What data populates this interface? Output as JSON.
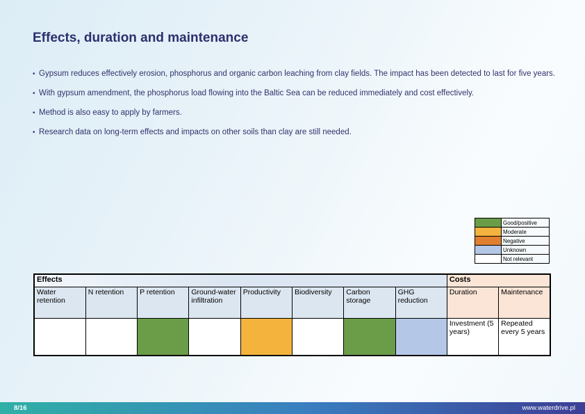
{
  "slide": {
    "title": "Effects, duration and maintenance",
    "bullets": [
      "Gypsum reduces effectively erosion, phosphorus and organic carbon leaching from clay fields. The impact has been detected to last for five years.",
      "With gypsum amendment, the phosphorus load flowing into the Baltic Sea can be reduced immediately and cost effectively.",
      "Method is also easy to apply by farmers.",
      "Research data on long-term effects and impacts on other soils than clay are still needed."
    ]
  },
  "legend": {
    "items": [
      {
        "label": "Good/positive",
        "color": "#6b9d49"
      },
      {
        "label": "Moderate",
        "color": "#f3b33d"
      },
      {
        "label": "Negative",
        "color": "#e0802f"
      },
      {
        "label": "Unknown",
        "color": "#b4c7e7"
      },
      {
        "label": "Not relevant",
        "color": "#ffffff"
      }
    ]
  },
  "table": {
    "group_headers": [
      {
        "key": "effects",
        "label": "Effects",
        "span": 8
      },
      {
        "key": "costs",
        "label": "Costs",
        "span": 2
      }
    ],
    "rating_colors": {
      "good": "#6b9d49",
      "moderate": "#f3b33d",
      "negative": "#e0802f",
      "unknown": "#b4c7e7",
      "not-relevant": "#ffffff"
    },
    "columns": [
      {
        "label": "Water retention",
        "group": "effects",
        "value": "not-relevant",
        "text": ""
      },
      {
        "label": "N retention",
        "group": "effects",
        "value": "not-relevant",
        "text": ""
      },
      {
        "label": "P retention",
        "group": "effects",
        "value": "good",
        "text": ""
      },
      {
        "label": "Ground-water infiltration",
        "group": "effects",
        "value": "not-relevant",
        "text": ""
      },
      {
        "label": "Productivity",
        "group": "effects",
        "value": "moderate",
        "text": ""
      },
      {
        "label": "Biodiversity",
        "group": "effects",
        "value": "not-relevant",
        "text": ""
      },
      {
        "label": "Carbon storage",
        "group": "effects",
        "value": "good",
        "text": ""
      },
      {
        "label": "GHG reduction",
        "group": "effects",
        "value": "unknown",
        "text": ""
      },
      {
        "label": "Duration",
        "group": "costs",
        "value": "not-relevant",
        "text": "Investment (5 years)"
      },
      {
        "label": "Maintenance",
        "group": "costs",
        "value": "not-relevant",
        "text": "Repeated every 5 years"
      }
    ]
  },
  "footer": {
    "page": "8/16",
    "website": "www.waterdrive.pl"
  }
}
